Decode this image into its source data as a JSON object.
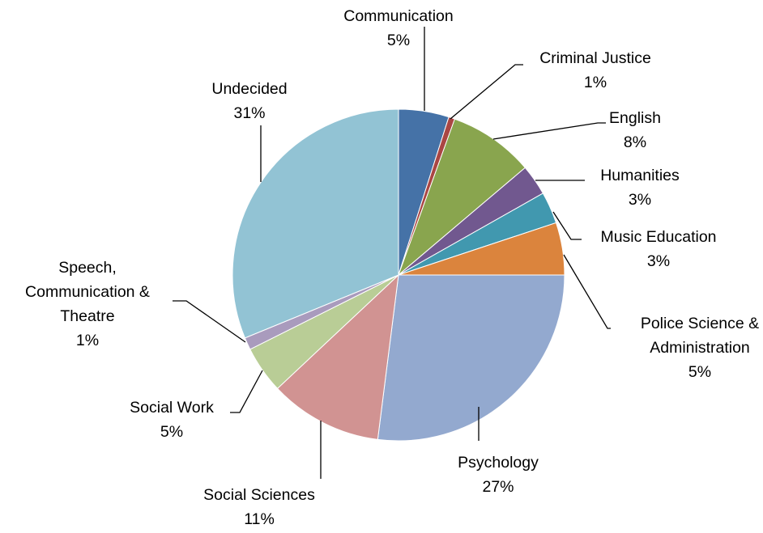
{
  "chart_data": {
    "type": "pie",
    "title": "",
    "start_angle_deg": 0,
    "direction": "clockwise",
    "slices": [
      {
        "label": "Communication",
        "label_lines": [
          "Communication"
        ],
        "value_label": "5%",
        "value": 4.9,
        "color": "#4572a7"
      },
      {
        "label": "Criminal Justice",
        "label_lines": [
          "Criminal Justice"
        ],
        "value_label": "1%",
        "value": 0.6,
        "color": "#aa4643"
      },
      {
        "label": "English",
        "label_lines": [
          "English"
        ],
        "value_label": "8%",
        "value": 8.3,
        "color": "#89a54e"
      },
      {
        "label": "Humanities",
        "label_lines": [
          "Humanities"
        ],
        "value_label": "3%",
        "value": 3.0,
        "color": "#71588f"
      },
      {
        "label": "Music Education",
        "label_lines": [
          "Music Education"
        ],
        "value_label": "3%",
        "value": 3.1,
        "color": "#4198af"
      },
      {
        "label": "Police Science & Administration",
        "label_lines": [
          "Police Science &",
          "Administration"
        ],
        "value_label": "5%",
        "value": 5.1,
        "color": "#db843d"
      },
      {
        "label": "Psychology",
        "label_lines": [
          "Psychology"
        ],
        "value_label": "27%",
        "value": 27.0,
        "color": "#93a9cf"
      },
      {
        "label": "Social Sciences",
        "label_lines": [
          "Social Sciences"
        ],
        "value_label": "11%",
        "value": 11.0,
        "color": "#d19392"
      },
      {
        "label": "Social Work",
        "label_lines": [
          "Social Work"
        ],
        "value_label": "5%",
        "value": 4.6,
        "color": "#b9cd96"
      },
      {
        "label": "Speech, Communication & Theatre",
        "label_lines": [
          "Speech,",
          "Communication &",
          "Theatre"
        ],
        "value_label": "1%",
        "value": 1.2,
        "color": "#a99bbd"
      },
      {
        "label": "Undecided",
        "label_lines": [
          "Undecided"
        ],
        "value_label": "31%",
        "value": 31.2,
        "color": "#92c3d4"
      }
    ]
  }
}
